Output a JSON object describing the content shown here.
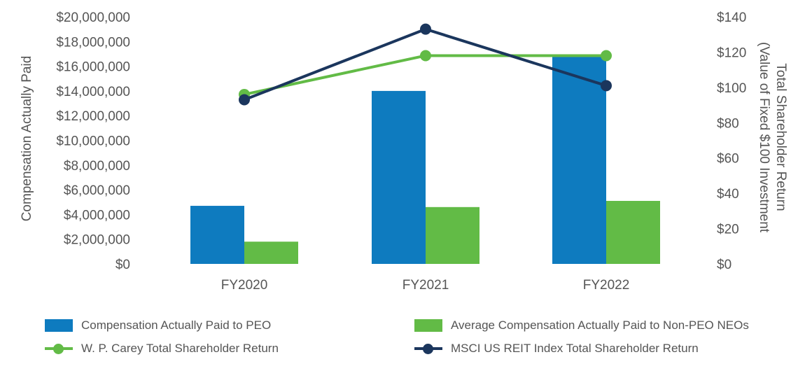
{
  "chart_data": {
    "type": "bar",
    "categories": [
      "FY2020",
      "FY2021",
      "FY2022"
    ],
    "series": [
      {
        "name": "Compensation Actually Paid to PEO",
        "type": "bar",
        "axis": "left",
        "color": "#0E7BBF",
        "values": [
          4700000,
          14000000,
          16900000
        ]
      },
      {
        "name": "Average Compensation Actually Paid to Non-PEO NEOs",
        "type": "bar",
        "axis": "left",
        "color": "#62BB46",
        "values": [
          1800000,
          4600000,
          5100000
        ]
      },
      {
        "name": "W. P. Carey Total Shareholder Return",
        "type": "line",
        "axis": "right",
        "color": "#62BB46",
        "values": [
          96,
          118,
          118
        ]
      },
      {
        "name": "MSCI US REIT Index Total Shareholder Return",
        "type": "line",
        "axis": "right",
        "color": "#1B365D",
        "values": [
          93,
          133,
          101
        ]
      }
    ],
    "left_axis": {
      "label": "Compensation Actually Paid",
      "ylim": [
        0,
        20000000
      ],
      "ticks": [
        "$0",
        "$2,000,000",
        "$4,000,000",
        "$6,000,000",
        "$8,000,000",
        "$10,000,000",
        "$12,000,000",
        "$14,000,000",
        "$16,000,000",
        "$18,000,000",
        "$20,000,000"
      ]
    },
    "right_axis": {
      "label_line1": "Total Shareholder Return",
      "label_line2": "(Value of Fixed $100 Investment",
      "ylim": [
        0,
        140
      ],
      "ticks": [
        "$0",
        "$20",
        "$40",
        "$60",
        "$80",
        "$100",
        "$120",
        "$140"
      ]
    },
    "grid": false,
    "legend_position": "bottom"
  }
}
